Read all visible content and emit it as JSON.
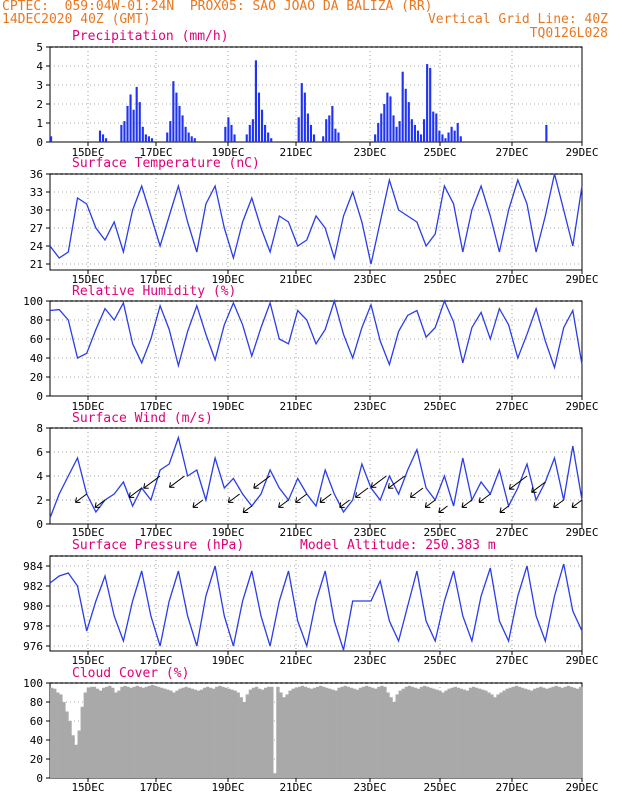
{
  "header": {
    "line1_left": "CPTEC:",
    "line1_coords": "059:04W-01:24N",
    "line1_station": "PROX05: SAO JOAO DA BALIZA (RR)",
    "line2_left": "14DEC2020 40Z (GMT)",
    "line2_right": "Vertical Grid Line: 40Z",
    "line3_right": "TQ0126L028"
  },
  "colors": {
    "header": "#e87722",
    "title": "#e0007a",
    "series": "#2a3de8",
    "bars": "#1f33f0",
    "cloud": "#a9a9a9",
    "arrow": "#000000",
    "grid": "#8c8c8c"
  },
  "chart_data": [
    {
      "type": "bar",
      "title": "Precipitation (mm/h)",
      "ylim": [
        0,
        5
      ],
      "yticks": [
        "0",
        "1",
        "2",
        "3",
        "4",
        "5"
      ],
      "xticks": [
        "15DEC",
        "17DEC",
        "19DEC",
        "21DEC",
        "23DEC",
        "25DEC",
        "27DEC",
        "29DEC"
      ],
      "xlim": [
        0,
        174
      ],
      "values": [
        0.3,
        0,
        0,
        0,
        0,
        0,
        0,
        0,
        0,
        0,
        0,
        0,
        0,
        0,
        0,
        0,
        0.6,
        0.4,
        0.2,
        0,
        0,
        0,
        0,
        0.9,
        1.1,
        1.9,
        2.5,
        1.7,
        2.9,
        2.1,
        0.8,
        0.4,
        0.3,
        0.2,
        0,
        0,
        0,
        0,
        0.5,
        1.1,
        3.2,
        2.6,
        1.9,
        1.4,
        0.8,
        0.5,
        0.3,
        0.2,
        0,
        0,
        0,
        0,
        0,
        0,
        0,
        0,
        0,
        0.8,
        1.3,
        0.9,
        0.4,
        0,
        0,
        0,
        0.4,
        0.9,
        1.2,
        4.3,
        2.6,
        1.7,
        0.9,
        0.5,
        0.2,
        0,
        0,
        0,
        0,
        0,
        0,
        0,
        0,
        1.3,
        3.1,
        2.6,
        1.5,
        0.9,
        0.4,
        0,
        0,
        0.3,
        1.2,
        1.4,
        1.9,
        0.7,
        0.5,
        0,
        0,
        0,
        0,
        0,
        0,
        0,
        0,
        0,
        0,
        0,
        0.4,
        1.0,
        1.5,
        2.0,
        2.6,
        2.4,
        1.4,
        0.8,
        1.1,
        3.7,
        2.8,
        2.1,
        1.2,
        0.9,
        0.6,
        0.4,
        1.2,
        4.1,
        3.9,
        1.6,
        1.5,
        0.6,
        0.4,
        0.2,
        0.5,
        0.8,
        0.6,
        1.0,
        0.3,
        0,
        0,
        0,
        0,
        0,
        0,
        0,
        0,
        0,
        0,
        0,
        0,
        0,
        0,
        0,
        0,
        0,
        0,
        0,
        0,
        0,
        0,
        0,
        0,
        0,
        0,
        0,
        0.9,
        0,
        0,
        0,
        0,
        0,
        0,
        0,
        0,
        0,
        0,
        0
      ]
    },
    {
      "type": "line",
      "title": "Surface Temperature (nC)",
      "ylim": [
        20,
        36
      ],
      "yticks": [
        "21",
        "24",
        "27",
        "30",
        "33",
        "36"
      ],
      "xticks": [
        "15DEC",
        "17DEC",
        "19DEC",
        "21DEC",
        "23DEC",
        "25DEC",
        "27DEC",
        "29DEC"
      ],
      "x": [
        0,
        3,
        6,
        9,
        12,
        15,
        18,
        21,
        24,
        27,
        30,
        33,
        36,
        39,
        42,
        45,
        48,
        51,
        54,
        57,
        60,
        63,
        66,
        69,
        72,
        75,
        78,
        81,
        84,
        87,
        90,
        93,
        96,
        99,
        102,
        105,
        108,
        111,
        114,
        117,
        120,
        123,
        126,
        129,
        132,
        135,
        138,
        141,
        144,
        147,
        150,
        153,
        156,
        159,
        162,
        165,
        168,
        171,
        174
      ],
      "values": [
        24,
        22,
        23,
        32,
        31,
        27,
        25,
        28,
        23,
        30,
        34,
        29,
        24,
        29,
        34,
        28,
        23,
        31,
        34,
        27,
        22,
        28,
        32,
        27,
        23,
        29,
        28,
        24,
        25,
        29,
        27,
        22,
        29,
        33,
        28,
        21,
        28,
        35,
        30,
        29,
        28,
        24,
        26,
        34,
        31,
        23,
        30,
        34,
        29,
        23,
        30,
        35,
        31,
        23,
        29,
        36,
        30,
        24,
        34
      ]
    },
    {
      "type": "line",
      "title": "Relative Humidity (%)",
      "ylim": [
        0,
        100
      ],
      "yticks": [
        "0",
        "20",
        "40",
        "60",
        "80",
        "100"
      ],
      "xticks": [
        "15DEC",
        "17DEC",
        "19DEC",
        "21DEC",
        "23DEC",
        "25DEC",
        "27DEC",
        "29DEC"
      ],
      "x": [
        0,
        3,
        6,
        9,
        12,
        15,
        18,
        21,
        24,
        27,
        30,
        33,
        36,
        39,
        42,
        45,
        48,
        51,
        54,
        57,
        60,
        63,
        66,
        69,
        72,
        75,
        78,
        81,
        84,
        87,
        90,
        93,
        96,
        99,
        102,
        105,
        108,
        111,
        114,
        117,
        120,
        123,
        126,
        129,
        132,
        135,
        138,
        141,
        144,
        147,
        150,
        153,
        156,
        159,
        162,
        165,
        168,
        171,
        174
      ],
      "values": [
        90,
        91,
        80,
        40,
        45,
        70,
        92,
        80,
        98,
        55,
        35,
        60,
        95,
        70,
        32,
        68,
        95,
        65,
        38,
        75,
        98,
        75,
        42,
        72,
        98,
        60,
        55,
        90,
        80,
        55,
        70,
        100,
        65,
        40,
        72,
        96,
        58,
        33,
        68,
        85,
        90,
        62,
        72,
        100,
        78,
        35,
        72,
        88,
        60,
        92,
        75,
        40,
        65,
        92,
        58,
        30,
        72,
        90,
        33
      ]
    },
    {
      "type": "line",
      "title": "Surface Wind (m/s)",
      "ylim": [
        0,
        8
      ],
      "yticks": [
        "0",
        "2",
        "4",
        "6",
        "8"
      ],
      "xticks": [
        "15DEC",
        "17DEC",
        "19DEC",
        "21DEC",
        "23DEC",
        "25DEC",
        "27DEC",
        "29DEC"
      ],
      "x": [
        0,
        3,
        6,
        9,
        12,
        15,
        18,
        21,
        24,
        27,
        30,
        33,
        36,
        39,
        42,
        45,
        48,
        51,
        54,
        57,
        60,
        63,
        66,
        69,
        72,
        75,
        78,
        81,
        84,
        87,
        90,
        93,
        96,
        99,
        102,
        105,
        108,
        111,
        114,
        117,
        120,
        123,
        126,
        129,
        132,
        135,
        138,
        141,
        144,
        147,
        150,
        153,
        156,
        159,
        162,
        165,
        168,
        171,
        174
      ],
      "values": [
        0.5,
        2.5,
        4.0,
        5.5,
        2.5,
        1.0,
        2.0,
        2.5,
        3.5,
        1.5,
        3.0,
        2.0,
        4.5,
        5.0,
        7.2,
        4.0,
        4.5,
        2.0,
        5.5,
        3.0,
        3.8,
        2.5,
        1.5,
        2.5,
        4.5,
        3.0,
        2.0,
        3.8,
        2.5,
        1.5,
        4.5,
        2.5,
        1.0,
        2.0,
        5.0,
        3.0,
        2.0,
        4.0,
        2.5,
        4.5,
        6.2,
        3.0,
        2.0,
        4.0,
        1.5,
        5.5,
        2.0,
        3.5,
        2.5,
        4.5,
        1.5,
        3.0,
        5.0,
        2.0,
        3.5,
        5.5,
        2.0,
        6.5,
        2.0
      ]
    },
    {
      "type": "line",
      "title": "Surface Pressure (hPa)",
      "annotation": "Model Altitude: 250.383 m",
      "ylim": [
        975.5,
        985
      ],
      "yticks": [
        "976",
        "978",
        "980",
        "982",
        "984"
      ],
      "xticks": [
        "15DEC",
        "17DEC",
        "19DEC",
        "21DEC",
        "23DEC",
        "25DEC",
        "27DEC",
        "29DEC"
      ],
      "x": [
        0,
        3,
        6,
        9,
        12,
        15,
        18,
        21,
        24,
        27,
        30,
        33,
        36,
        39,
        42,
        45,
        48,
        51,
        54,
        57,
        60,
        63,
        66,
        69,
        72,
        75,
        78,
        81,
        84,
        87,
        90,
        93,
        96,
        99,
        102,
        105,
        108,
        111,
        114,
        117,
        120,
        123,
        126,
        129,
        132,
        135,
        138,
        141,
        144,
        147,
        150,
        153,
        156,
        159,
        162,
        165,
        168,
        171,
        174
      ],
      "values": [
        982.3,
        983.0,
        983.3,
        982.0,
        977.5,
        980.5,
        983.0,
        979.0,
        976.5,
        980.5,
        983.5,
        979.0,
        976.0,
        980.5,
        983.5,
        979.0,
        976.0,
        981.0,
        984.0,
        979.0,
        976.0,
        980.5,
        983.5,
        979.0,
        976.0,
        980.5,
        983.5,
        978.5,
        976.0,
        980.5,
        983.5,
        978.5,
        975.6,
        980.5,
        980.5,
        980.5,
        982.5,
        978.5,
        976.5,
        980.0,
        983.5,
        978.5,
        976.5,
        980.5,
        983.5,
        979.0,
        976.5,
        981.0,
        983.8,
        978.5,
        976.5,
        981.0,
        984.0,
        979.0,
        976.5,
        981.0,
        984.2,
        979.5,
        977.5
      ]
    },
    {
      "type": "bar",
      "title": "Cloud Cover (%)",
      "ylim": [
        0,
        100
      ],
      "yticks": [
        "0",
        "20",
        "40",
        "60",
        "80",
        "100"
      ],
      "xticks": [
        "15DEC",
        "17DEC",
        "19DEC",
        "21DEC",
        "23DEC",
        "25DEC",
        "27DEC",
        "29DEC"
      ],
      "xlim": [
        0,
        174
      ],
      "values": [
        95,
        94,
        90,
        88,
        80,
        70,
        60,
        45,
        35,
        50,
        75,
        90,
        95,
        96,
        96,
        94,
        92,
        95,
        96,
        97,
        95,
        90,
        92,
        96,
        97,
        96,
        95,
        96,
        97,
        96,
        95,
        96,
        97,
        98,
        97,
        96,
        95,
        94,
        93,
        92,
        90,
        92,
        94,
        95,
        96,
        95,
        94,
        93,
        92,
        93,
        95,
        96,
        95,
        94,
        96,
        97,
        96,
        95,
        94,
        93,
        92,
        90,
        85,
        80,
        88,
        93,
        95,
        96,
        94,
        93,
        95,
        96,
        96,
        5,
        96,
        90,
        85,
        88,
        92,
        94,
        95,
        96,
        97,
        96,
        95,
        94,
        95,
        96,
        97,
        96,
        95,
        94,
        93,
        92,
        95,
        96,
        97,
        96,
        95,
        94,
        93,
        95,
        96,
        97,
        96,
        95,
        94,
        96,
        97,
        96,
        90,
        85,
        80,
        88,
        92,
        94,
        96,
        97,
        96,
        95,
        94,
        96,
        97,
        96,
        95,
        94,
        93,
        92,
        90,
        92,
        94,
        95,
        96,
        95,
        94,
        93,
        92,
        95,
        96,
        95,
        94,
        93,
        92,
        90,
        88,
        85,
        88,
        90,
        92,
        94,
        95,
        96,
        97,
        96,
        95,
        94,
        93,
        92,
        94,
        95,
        96,
        95,
        94,
        95,
        96,
        97,
        96,
        95,
        96,
        97,
        96,
        95,
        94,
        96
      ]
    }
  ]
}
